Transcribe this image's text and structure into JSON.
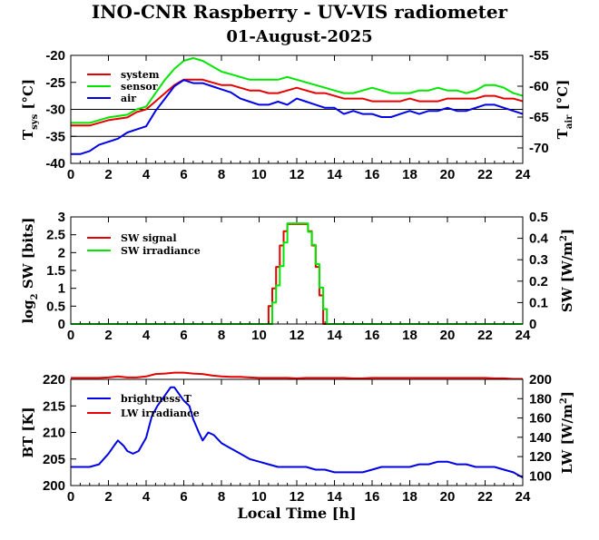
{
  "title": "INO-CNR Raspberry - UV-VIS radiometer",
  "subtitle": "01-August-2025",
  "colors": {
    "red": "#e60000",
    "green": "#00e600",
    "blue": "#0000e6"
  },
  "chart_data": [
    {
      "type": "line",
      "xlabel": "",
      "ylabel": "T_sys [°C]",
      "ylabel_main": "T",
      "ylabel_sub": "sys",
      "ylabel_unit": " [°C]",
      "y2label_main": "T",
      "y2label_sub": "air",
      "y2label_unit": " [°C]",
      "xlim": [
        0,
        24
      ],
      "ylim": [
        -40,
        -20
      ],
      "y2lim": [
        -72.5,
        -55
      ],
      "xticks": [
        "0",
        "2",
        "4",
        "6",
        "8",
        "10",
        "12",
        "14",
        "16",
        "18",
        "20",
        "22",
        "24"
      ],
      "yticks": [
        "-40",
        "-35",
        "-30",
        "-25",
        "-20"
      ],
      "y2ticks": [
        "-70",
        "-65",
        "-60",
        "-55"
      ],
      "grid_y": [
        -30,
        -35
      ],
      "legend_position": "top-left",
      "series": [
        {
          "name": "system",
          "color": "red",
          "x": [
            0,
            1,
            2,
            3,
            3.5,
            4,
            4.5,
            5,
            5.5,
            6,
            6.5,
            7,
            7.5,
            8,
            8.5,
            9,
            9.5,
            10,
            10.5,
            11,
            11.5,
            12,
            12.5,
            13,
            13.5,
            14,
            14.5,
            15,
            15.5,
            16,
            16.5,
            17,
            17.5,
            18,
            18.5,
            19,
            19.5,
            20,
            20.5,
            21,
            21.5,
            22,
            22.5,
            23,
            23.5,
            24
          ],
          "y": [
            -33,
            -33,
            -32,
            -31.5,
            -30.5,
            -30,
            -28.5,
            -27,
            -25.5,
            -24.5,
            -24.5,
            -24.5,
            -25,
            -25.5,
            -25.5,
            -26,
            -26.5,
            -26.5,
            -27,
            -27,
            -26.5,
            -26,
            -26.5,
            -27,
            -27,
            -27.5,
            -28,
            -28,
            -28,
            -28.5,
            -28.5,
            -28.5,
            -28.5,
            -28,
            -28.5,
            -28.5,
            -28.5,
            -28,
            -28,
            -28,
            -28,
            -27.5,
            -27.5,
            -28,
            -28,
            -28.5
          ]
        },
        {
          "name": "sensor",
          "color": "green",
          "x": [
            0,
            1,
            2,
            3,
            3.5,
            4,
            4.5,
            5,
            5.5,
            6,
            6.5,
            7,
            7.5,
            8,
            8.5,
            9,
            9.5,
            10,
            10.5,
            11,
            11.5,
            12,
            12.5,
            13,
            13.5,
            14,
            14.5,
            15,
            15.5,
            16,
            16.5,
            17,
            17.5,
            18,
            18.5,
            19,
            19.5,
            20,
            20.5,
            21,
            21.5,
            22,
            22.5,
            23,
            23.5,
            24
          ],
          "y": [
            -32.5,
            -32.5,
            -31.5,
            -31,
            -30,
            -29.5,
            -27,
            -24.5,
            -22.5,
            -21,
            -20.5,
            -21,
            -22,
            -23,
            -23.5,
            -24,
            -24.5,
            -24.5,
            -24.5,
            -24.5,
            -24,
            -24.5,
            -25,
            -25.5,
            -26,
            -26.5,
            -27,
            -27,
            -26.5,
            -26,
            -26.5,
            -27,
            -27,
            -27,
            -26.5,
            -26.5,
            -26,
            -26.5,
            -26.5,
            -27,
            -26.5,
            -25.5,
            -25.5,
            -26,
            -27,
            -27.5
          ]
        },
        {
          "name": "air",
          "color": "blue",
          "x": [
            0,
            0.5,
            1,
            1.5,
            2,
            2.5,
            3,
            3.5,
            4,
            4.5,
            5,
            5.5,
            6,
            6.5,
            7,
            7.5,
            8,
            8.5,
            9,
            9.5,
            10,
            10.5,
            11,
            11.5,
            12,
            12.5,
            13,
            13.5,
            14,
            14.5,
            15,
            15.5,
            16,
            16.5,
            17,
            17.5,
            18,
            18.5,
            19,
            19.5,
            20,
            20.5,
            21,
            21.5,
            22,
            22.5,
            23,
            23.5,
            24
          ],
          "y": [
            -71,
            -71,
            -70.5,
            -69.5,
            -69,
            -68.5,
            -67.5,
            -67,
            -66.5,
            -64,
            -62,
            -60,
            -59,
            -59.5,
            -59.5,
            -60,
            -60.5,
            -61,
            -62,
            -62.5,
            -63,
            -63,
            -62.5,
            -63,
            -62,
            -62.5,
            -63,
            -63.5,
            -63.5,
            -64.5,
            -64,
            -64.5,
            -64.5,
            -65,
            -65,
            -64.5,
            -64,
            -64.5,
            -64,
            -64,
            -63.5,
            -64,
            -64,
            -63.5,
            -63,
            -63,
            -63.5,
            -64,
            -64.5
          ]
        }
      ]
    },
    {
      "type": "line",
      "xlabel": "",
      "ylabel": "log2 SW [bits]",
      "ylabel_main": "log",
      "ylabel_sub": "2",
      "ylabel_unit": " SW [bits]",
      "y2label_main": "SW [W/m",
      "y2label_sup": "2",
      "y2label_unit": "]",
      "xlim": [
        0,
        24
      ],
      "ylim": [
        0,
        3
      ],
      "y2lim": [
        0,
        0.5
      ],
      "xticks": [
        "0",
        "2",
        "4",
        "6",
        "8",
        "10",
        "12",
        "14",
        "16",
        "18",
        "20",
        "22",
        "24"
      ],
      "yticks": [
        "0",
        "0.5",
        "1",
        "1.5",
        "2",
        "2.5",
        "3"
      ],
      "y2ticks": [
        "0",
        "0.1",
        "0.2",
        "0.3",
        "0.4",
        "0.5"
      ],
      "legend_position": "top-left",
      "series": [
        {
          "name": "SW signal",
          "color": "red",
          "step": true,
          "x": [
            0,
            10.3,
            10.5,
            10.7,
            10.9,
            11.1,
            11.3,
            11.5,
            12.4,
            12.6,
            12.8,
            13.0,
            13.2,
            13.4,
            24
          ],
          "y": [
            0,
            0,
            0.5,
            1,
            1.6,
            2.2,
            2.6,
            2.8,
            2.8,
            2.6,
            2.2,
            1.6,
            0.8,
            0,
            0
          ]
        },
        {
          "name": "SW irradiance",
          "color": "green",
          "step": true,
          "x": [
            0,
            10.5,
            10.7,
            10.9,
            11.1,
            11.3,
            11.5,
            12.4,
            12.6,
            12.8,
            13.0,
            13.2,
            13.4,
            13.6,
            24
          ],
          "y": [
            0,
            0,
            0.1,
            0.18,
            0.27,
            0.38,
            0.47,
            0.47,
            0.43,
            0.37,
            0.28,
            0.17,
            0.07,
            0,
            0
          ]
        }
      ]
    },
    {
      "type": "line",
      "xlabel": "Local Time [h]",
      "ylabel": "BT [K]",
      "y2label_main": "LW [W/m",
      "y2label_sup": "2",
      "y2label_unit": "]",
      "xlim": [
        0,
        24
      ],
      "ylim": [
        200,
        220
      ],
      "y2lim": [
        90,
        200
      ],
      "xticks": [
        "0",
        "2",
        "4",
        "6",
        "8",
        "10",
        "12",
        "14",
        "16",
        "18",
        "20",
        "22",
        "24"
      ],
      "yticks": [
        "200",
        "205",
        "210",
        "215",
        "220"
      ],
      "y2ticks": [
        "100",
        "120",
        "140",
        "160",
        "180",
        "200"
      ],
      "legend_position": "top-left",
      "series": [
        {
          "name": "brightness T",
          "color": "blue",
          "x": [
            0,
            0.5,
            1,
            1.5,
            2,
            2.3,
            2.5,
            2.8,
            3,
            3.3,
            3.6,
            4,
            4.3,
            4.6,
            5,
            5.3,
            5.5,
            5.8,
            6,
            6.3,
            6.5,
            6.8,
            7,
            7.3,
            7.6,
            8,
            8.5,
            9,
            9.5,
            10,
            10.5,
            11,
            11.5,
            12,
            12.5,
            13,
            13.5,
            14,
            14.5,
            15,
            15.5,
            16,
            16.5,
            17,
            17.5,
            18,
            18.5,
            19,
            19.5,
            20,
            20.5,
            21,
            21.5,
            22,
            22.5,
            23,
            23.5,
            24
          ],
          "y": [
            203.5,
            203.5,
            203.5,
            204,
            206,
            207.5,
            208.5,
            207.5,
            206.5,
            206,
            206.5,
            209,
            213,
            215,
            217,
            218.5,
            218.5,
            217,
            216,
            215,
            212.5,
            210,
            208.5,
            210,
            209.5,
            208,
            207,
            206,
            205,
            204.5,
            204,
            203.5,
            203.5,
            203.5,
            203.5,
            203,
            203,
            202.5,
            202.5,
            202.5,
            202.5,
            203,
            203.5,
            203.5,
            203.5,
            203.5,
            204,
            204,
            204.5,
            204.5,
            204,
            204,
            203.5,
            203.5,
            203.5,
            203,
            202.5,
            201.5
          ]
        },
        {
          "name": "LW irradiance",
          "color": "red",
          "x": [
            0,
            0.5,
            1,
            1.5,
            2,
            2.5,
            3,
            3.5,
            4,
            4.5,
            5,
            5.5,
            6,
            6.5,
            7,
            7.5,
            8,
            8.5,
            9,
            9.5,
            10,
            10.5,
            11,
            11.5,
            12,
            12.5,
            13,
            13.5,
            14,
            14.5,
            15,
            15.5,
            16,
            16.5,
            17,
            17.5,
            18,
            18.5,
            19,
            19.5,
            20,
            20.5,
            21,
            21.5,
            22,
            22.5,
            23,
            23.5,
            24
          ],
          "y": [
            201.5,
            201.5,
            201.5,
            201.5,
            202,
            203,
            202,
            202,
            203,
            205.5,
            206,
            207,
            207,
            206,
            205.5,
            204,
            203,
            202.5,
            202.5,
            202,
            201.5,
            201.5,
            201.5,
            201.5,
            201,
            201.5,
            201.5,
            201.5,
            201.5,
            201.5,
            201,
            201,
            201.5,
            201.5,
            201.5,
            201.5,
            201.5,
            201.5,
            201.5,
            201.5,
            201.5,
            201.5,
            201.5,
            201.5,
            201.5,
            201,
            201,
            200.5,
            200.5
          ]
        }
      ]
    }
  ]
}
